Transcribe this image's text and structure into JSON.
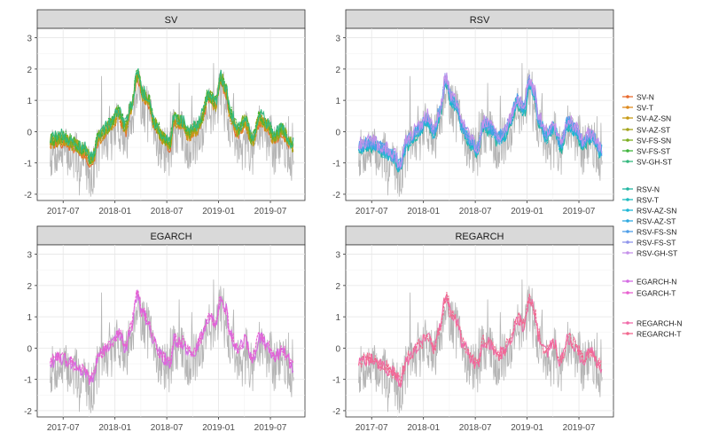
{
  "chart_data": [
    {
      "panel": "SV",
      "type": "line",
      "title": "SV",
      "x_ticks": [
        "2017-07",
        "2018-01",
        "2018-07",
        "2019-01",
        "2019-07"
      ],
      "y_ticks": [
        -2,
        -1,
        0,
        1,
        2,
        3
      ],
      "xlim": [
        "2017-04",
        "2019-11"
      ],
      "ylim": [
        -2.2,
        3.3
      ],
      "grid": true,
      "series": [
        {
          "name": "SV-N",
          "color": "#e8692d"
        },
        {
          "name": "SV-T",
          "color": "#de8a1e"
        },
        {
          "name": "SV-AZ-SN",
          "color": "#c79a14"
        },
        {
          "name": "SV-AZ-ST",
          "color": "#a3a41a"
        },
        {
          "name": "SV-FS-SN",
          "color": "#7bae1f"
        },
        {
          "name": "SV-FS-ST",
          "color": "#3fb43c"
        },
        {
          "name": "SV-GH-ST",
          "color": "#34b87e"
        }
      ],
      "realized_color": "#b5b5b5"
    },
    {
      "panel": "RSV",
      "type": "line",
      "title": "RSV",
      "x_ticks": [
        "2017-07",
        "2018-01",
        "2018-07",
        "2019-01",
        "2019-07"
      ],
      "y_ticks": [
        -2,
        -1,
        0,
        1,
        2,
        3
      ],
      "xlim": [
        "2017-04",
        "2019-11"
      ],
      "ylim": [
        -2.2,
        3.3
      ],
      "grid": true,
      "series": [
        {
          "name": "RSV-N",
          "color": "#1fb5a0"
        },
        {
          "name": "RSV-T",
          "color": "#1dbcc0"
        },
        {
          "name": "RSV-AZ-SN",
          "color": "#1db6d6"
        },
        {
          "name": "RSV-AZ-ST",
          "color": "#2fa9e0"
        },
        {
          "name": "RSV-FS-SN",
          "color": "#4f9ee8"
        },
        {
          "name": "RSV-FS-ST",
          "color": "#8f94ec"
        },
        {
          "name": "RSV-GH-ST",
          "color": "#c591ea"
        }
      ],
      "realized_color": "#b5b5b5"
    },
    {
      "panel": "EGARCH",
      "type": "line",
      "title": "EGARCH",
      "x_ticks": [
        "2017-07",
        "2018-01",
        "2018-07",
        "2019-01",
        "2019-07"
      ],
      "y_ticks": [
        -2,
        -1,
        0,
        1,
        2,
        3
      ],
      "xlim": [
        "2017-04",
        "2019-11"
      ],
      "ylim": [
        -2.2,
        3.3
      ],
      "grid": true,
      "series": [
        {
          "name": "EGARCH-N",
          "color": "#d46be3"
        },
        {
          "name": "EGARCH-T",
          "color": "#e860d0"
        }
      ],
      "realized_color": "#b5b5b5"
    },
    {
      "panel": "REGARCH",
      "type": "line",
      "title": "REGARCH",
      "x_ticks": [
        "2017-07",
        "2018-01",
        "2018-07",
        "2019-01",
        "2019-07"
      ],
      "y_ticks": [
        -2,
        -1,
        0,
        1,
        2,
        3
      ],
      "xlim": [
        "2017-04",
        "2019-11"
      ],
      "ylim": [
        -2.2,
        3.3
      ],
      "grid": true,
      "series": [
        {
          "name": "REGARCH-N",
          "color": "#f06aa9"
        },
        {
          "name": "REGARCH-T",
          "color": "#f2688e"
        }
      ],
      "realized_color": "#b5b5b5"
    }
  ],
  "legend_position": "right"
}
